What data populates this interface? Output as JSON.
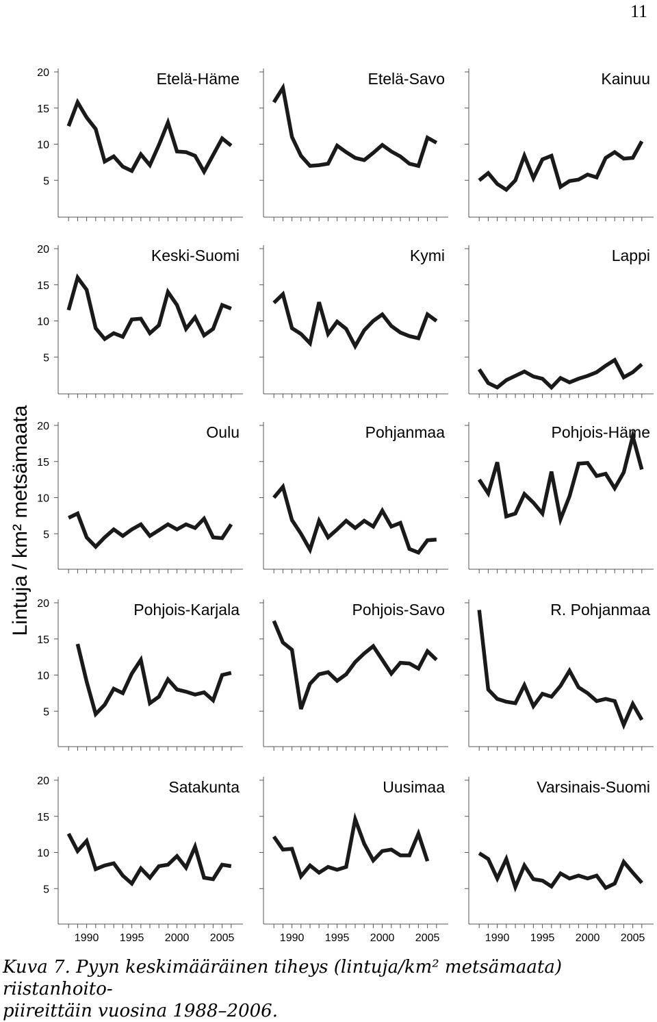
{
  "page_number": "11",
  "caption": {
    "line1": "Kuva 7. Pyyn keskimääräinen tiheys (lintuja/km² metsämaata) riistanhoito-",
    "line2": "piireittäin vuosina 1988–2006."
  },
  "chart_data": {
    "type": "line",
    "layout": "small-multiples 5x3",
    "ylabel": "Lintuja / km² metsämaata",
    "yticks": [
      5,
      10,
      15,
      20
    ],
    "xticks": [
      1990,
      1995,
      2000,
      2005
    ],
    "ylim": [
      0,
      20
    ],
    "xlim": [
      1987,
      2007
    ],
    "grid": false,
    "line_color": "#1a1a1a",
    "years": [
      1988,
      1989,
      1990,
      1991,
      1992,
      1993,
      1994,
      1995,
      1996,
      1997,
      1998,
      1999,
      2000,
      2001,
      2002,
      2003,
      2004,
      2005,
      2006
    ],
    "panels": [
      {
        "title": "Etelä-Häme",
        "values": [
          12.5,
          15.8,
          13.7,
          12.1,
          7.6,
          8.3,
          6.9,
          6.3,
          8.6,
          7.1,
          9.9,
          13.0,
          9.0,
          8.9,
          8.4,
          6.2,
          8.5,
          10.8,
          9.8
        ]
      },
      {
        "title": "Etelä-Savo",
        "values": [
          15.8,
          17.8,
          11.0,
          8.4,
          7.0,
          7.1,
          7.3,
          9.8,
          8.9,
          8.1,
          7.8,
          8.8,
          9.9,
          9.0,
          8.3,
          7.3,
          7.0,
          10.9,
          10.2
        ]
      },
      {
        "title": "Kainuu",
        "values": [
          5.0,
          6.0,
          4.5,
          3.7,
          5.0,
          8.4,
          5.3,
          7.9,
          8.4,
          4.1,
          4.9,
          5.1,
          5.8,
          5.4,
          8.1,
          8.9,
          8.0,
          8.1,
          10.4
        ]
      },
      {
        "title": "Keski-Suomi",
        "values": [
          11.5,
          16.0,
          14.3,
          9.0,
          7.5,
          8.3,
          7.8,
          10.2,
          10.3,
          8.3,
          9.4,
          14.0,
          12.2,
          8.9,
          10.5,
          8.0,
          8.9,
          12.2,
          11.7
        ]
      },
      {
        "title": "Kymi",
        "values": [
          12.5,
          13.7,
          9.0,
          8.2,
          6.9,
          12.6,
          8.2,
          9.9,
          8.9,
          6.5,
          8.7,
          10.0,
          10.9,
          9.3,
          8.4,
          7.9,
          7.6,
          10.9,
          10.0
        ]
      },
      {
        "title": "Lappi",
        "values": [
          3.3,
          1.4,
          0.8,
          1.8,
          2.4,
          3.0,
          2.3,
          2.0,
          0.8,
          2.1,
          1.5,
          2.0,
          2.4,
          2.9,
          3.8,
          4.6,
          2.2,
          2.9,
          4.0
        ]
      },
      {
        "title": "Oulu",
        "values": [
          7.2,
          7.8,
          4.5,
          3.2,
          4.5,
          5.6,
          4.7,
          5.6,
          6.3,
          4.7,
          5.5,
          6.3,
          5.6,
          6.3,
          5.8,
          7.1,
          4.5,
          4.4,
          6.3
        ]
      },
      {
        "title": "Pohjanmaa",
        "values": [
          10.0,
          11.5,
          6.9,
          5.0,
          2.8,
          6.8,
          4.5,
          5.6,
          6.8,
          5.8,
          6.8,
          6.0,
          8.2,
          6.0,
          6.5,
          2.9,
          2.4,
          4.1,
          4.2
        ]
      },
      {
        "title": "Pohjois-Häme",
        "values": [
          12.5,
          10.6,
          14.9,
          7.4,
          7.8,
          10.5,
          9.3,
          7.8,
          13.6,
          7.0,
          10.2,
          14.7,
          14.8,
          13.0,
          13.3,
          11.3,
          13.5,
          18.5,
          13.9
        ]
      },
      {
        "title": "Pohjois-Karjala",
        "values": [
          null,
          14.3,
          9.1,
          4.6,
          5.9,
          8.1,
          7.5,
          10.2,
          12.1,
          6.1,
          7.0,
          9.4,
          8.0,
          7.7,
          7.3,
          7.6,
          6.5,
          10.0,
          10.3
        ]
      },
      {
        "title": "Pohjois-Savo",
        "values": [
          17.5,
          14.5,
          13.5,
          5.3,
          8.8,
          10.1,
          10.4,
          9.2,
          10.1,
          11.8,
          13.0,
          14.0,
          12.1,
          10.2,
          11.7,
          11.6,
          10.9,
          13.3,
          12.1
        ]
      },
      {
        "title": "R. Pohjanmaa",
        "values": [
          19.0,
          8.0,
          6.7,
          6.3,
          6.1,
          8.6,
          5.7,
          7.4,
          7.0,
          8.5,
          10.6,
          8.3,
          7.5,
          6.4,
          6.7,
          6.4,
          3.1,
          6.0,
          3.8
        ]
      },
      {
        "title": "Satakunta",
        "values": [
          12.6,
          10.2,
          11.6,
          7.7,
          8.2,
          8.5,
          6.8,
          5.7,
          7.8,
          6.5,
          8.1,
          8.3,
          9.5,
          7.9,
          10.8,
          6.5,
          6.3,
          8.3,
          8.1
        ]
      },
      {
        "title": "Uusimaa",
        "values": [
          12.2,
          10.4,
          10.5,
          6.7,
          8.2,
          7.2,
          8.0,
          7.6,
          8.0,
          14.6,
          11.2,
          8.9,
          10.2,
          10.4,
          9.6,
          9.6,
          12.6,
          8.8,
          null
        ]
      },
      {
        "title": "Varsinais-Suomi",
        "values": [
          9.9,
          9.1,
          6.4,
          9.1,
          5.2,
          8.2,
          6.3,
          6.1,
          5.3,
          7.1,
          6.4,
          6.8,
          6.4,
          6.8,
          5.1,
          5.7,
          8.7,
          7.2,
          5.8
        ]
      }
    ]
  }
}
